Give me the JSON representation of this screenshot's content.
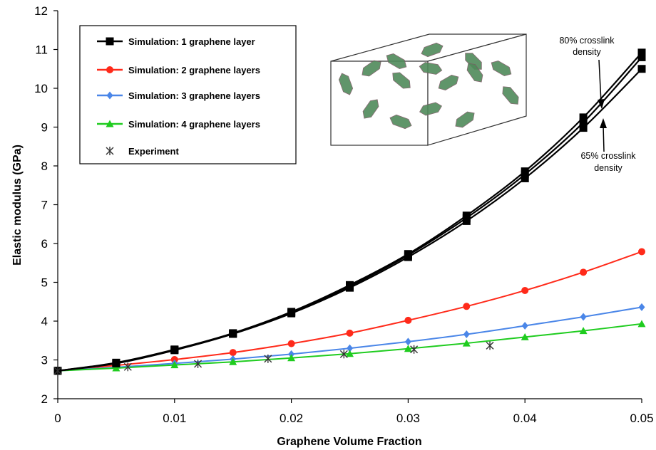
{
  "chart_data": {
    "type": "line",
    "xlabel": "Graphene Volume Fraction",
    "ylabel": "Elastic modulus (GPa)",
    "xlim": [
      0,
      0.05
    ],
    "ylim": [
      2,
      12
    ],
    "xticks": [
      0,
      0.01,
      0.02,
      0.03,
      0.04,
      0.05
    ],
    "xtick_labels": [
      "0",
      "0.01",
      "0.02",
      "0.03",
      "0.04",
      "0.05"
    ],
    "yticks": [
      2,
      3,
      4,
      5,
      6,
      7,
      8,
      9,
      10,
      11,
      12
    ],
    "ytick_labels": [
      "2",
      "3",
      "4",
      "5",
      "6",
      "7",
      "8",
      "9",
      "10",
      "11",
      "12"
    ],
    "grid": false,
    "legend_position": "top-left",
    "x": [
      0,
      0.005,
      0.01,
      0.015,
      0.02,
      0.025,
      0.03,
      0.035,
      0.04,
      0.045,
      0.05
    ],
    "series": [
      {
        "name": "Simulation: 1 graphene layer",
        "color": "#000000",
        "marker": "square",
        "values": [
          2.72,
          2.93,
          3.27,
          3.69,
          4.24,
          4.93,
          5.73,
          6.72,
          7.86,
          9.25,
          10.92
        ]
      },
      {
        "color": "#000000",
        "marker": "square",
        "values": [
          2.72,
          2.92,
          3.26,
          3.68,
          4.22,
          4.9,
          5.7,
          6.66,
          7.78,
          9.12,
          10.8
        ]
      },
      {
        "color": "#000000",
        "marker": "square",
        "values": [
          2.72,
          2.91,
          3.25,
          3.67,
          4.2,
          4.86,
          5.65,
          6.58,
          7.68,
          8.98,
          10.5
        ]
      },
      {
        "name": "Simulation: 2 graphene layers",
        "color": "#ff2a1a",
        "marker": "circle",
        "values": [
          2.72,
          2.86,
          3.01,
          3.19,
          3.42,
          3.69,
          4.02,
          4.38,
          4.79,
          5.26,
          5.79
        ]
      },
      {
        "name": "Simulation: 3 graphene layers",
        "color": "#4a86e8",
        "marker": "diamond",
        "values": [
          2.72,
          2.81,
          2.91,
          3.02,
          3.15,
          3.3,
          3.47,
          3.66,
          3.88,
          4.11,
          4.36
        ]
      },
      {
        "name": "Simulation: 4 graphene layers",
        "color": "#1fcc1f",
        "marker": "triangle",
        "values": [
          2.72,
          2.79,
          2.87,
          2.95,
          3.05,
          3.16,
          3.29,
          3.43,
          3.59,
          3.75,
          3.93
        ]
      }
    ],
    "experiment": {
      "name": "Experiment",
      "marker": "asterisk",
      "color": "#333333",
      "x": [
        0,
        0.006,
        0.012,
        0.018,
        0.0245,
        0.0305,
        0.037
      ],
      "y": [
        2.72,
        2.82,
        2.9,
        3.03,
        3.15,
        3.27,
        3.37
      ]
    },
    "annotations": [
      {
        "id": "top",
        "lines": [
          "80% crosslink",
          "density"
        ]
      },
      {
        "id": "bottom",
        "lines": [
          "65% crosslink",
          "density"
        ]
      }
    ],
    "inset": {
      "icon": "graphene-composite-cube-illustration",
      "fill": "#4f8a5a"
    }
  }
}
